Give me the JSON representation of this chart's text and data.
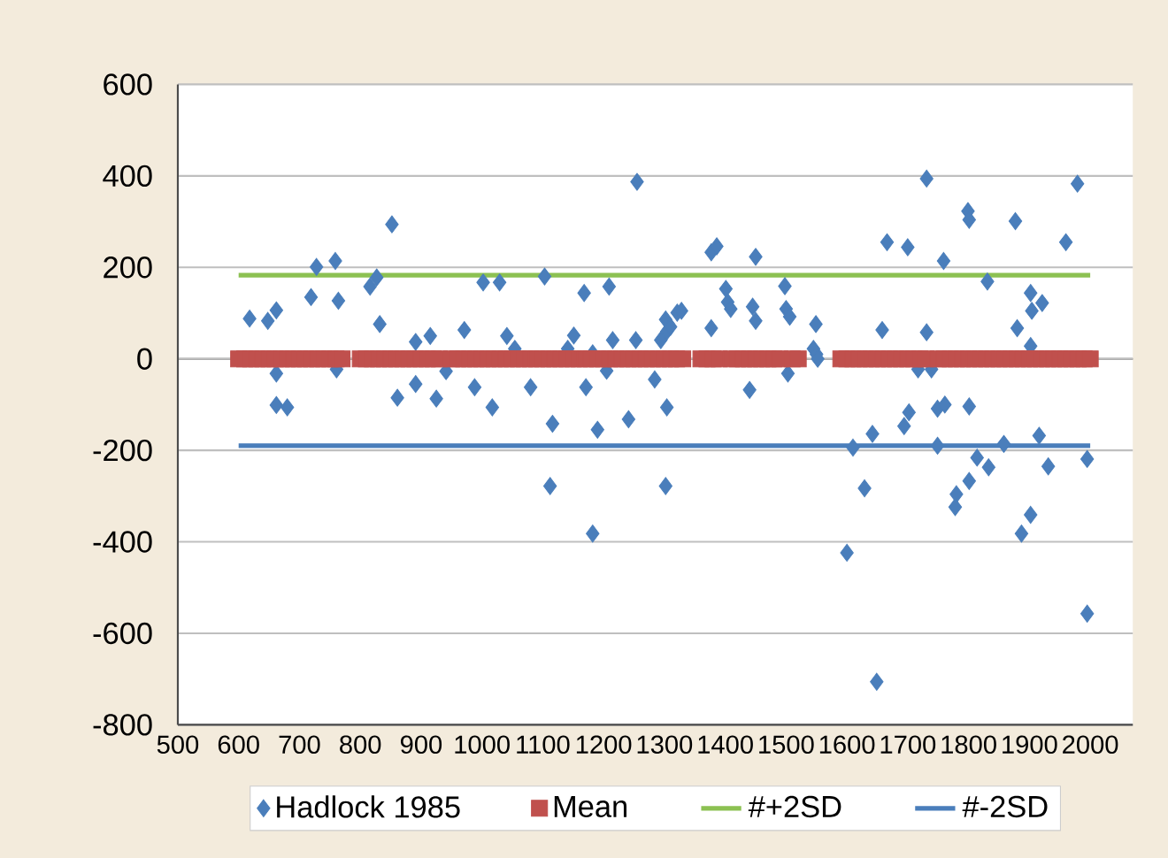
{
  "chart_data": {
    "type": "scatter",
    "xlim": [
      500,
      2070
    ],
    "xticks": [
      500,
      600,
      700,
      800,
      900,
      1000,
      1100,
      1200,
      1300,
      1400,
      1500,
      1600,
      1700,
      1800,
      1900,
      2000
    ],
    "ylim": [
      -800,
      600
    ],
    "yticks": [
      -800,
      -600,
      -400,
      -200,
      0,
      200,
      400,
      600
    ],
    "grid": "y",
    "legend": "bottom",
    "series": [
      {
        "name": "Hadlock 1985",
        "marker": "diamond",
        "color": "#4a7ebb",
        "x": [
          618,
          648,
          662,
          662,
          662,
          680,
          719,
          728,
          759,
          764,
          761,
          816,
          827,
          832,
          852,
          861,
          891,
          891,
          915,
          925,
          941,
          971,
          988,
          1002,
          1017,
          1029,
          1041,
          1054,
          1080,
          1103,
          1116,
          1112,
          1141,
          1151,
          1168,
          1171,
          1182,
          1190,
          1182,
          1205,
          1209,
          1215,
          1241,
          1253,
          1255,
          1284,
          1294,
          1302,
          1304,
          1304,
          1302,
          1310,
          1321,
          1328,
          1377,
          1386,
          1377,
          1401,
          1404,
          1409,
          1450,
          1445,
          1450,
          1440,
          1498,
          1500,
          1506,
          1503,
          1549,
          1545,
          1550,
          1552,
          1610,
          1600,
          1629,
          1642,
          1649,
          1658,
          1666,
          1700,
          1694,
          1702,
          1717,
          1731,
          1731,
          1739,
          1749,
          1749,
          1759,
          1761,
          1780,
          1778,
          1799,
          1801,
          1801,
          1801,
          1814,
          1831,
          1833,
          1858,
          1877,
          1880,
          1902,
          1904,
          1921,
          1902,
          1887,
          1902,
          1916,
          1931,
          1960,
          1979,
          1995,
          1995
        ],
        "values": [
          88,
          83,
          106,
          -32,
          -101,
          -106,
          135,
          201,
          214,
          127,
          -23,
          158,
          178,
          76,
          294,
          -85,
          37,
          -55,
          50,
          -87,
          -27,
          63,
          -62,
          167,
          -106,
          167,
          50,
          22,
          -62,
          180,
          -142,
          -278,
          22,
          51,
          144,
          -62,
          12,
          -155,
          -382,
          -26,
          158,
          41,
          -132,
          41,
          387,
          -45,
          41,
          86,
          60,
          -106,
          -278,
          70,
          101,
          105,
          233,
          246,
          67,
          153,
          124,
          109,
          223,
          114,
          83,
          -68,
          159,
          109,
          92,
          -32,
          76,
          22,
          10,
          0,
          -194,
          -424,
          -283,
          -164,
          -706,
          63,
          255,
          244,
          -147,
          -117,
          -23,
          394,
          58,
          -23,
          -109,
          -190,
          214,
          -100,
          -296,
          -324,
          323,
          304,
          -104,
          -267,
          -216,
          169,
          -237,
          -186,
          301,
          67,
          144,
          105,
          122,
          28,
          -382,
          -341,
          -168,
          -235,
          255,
          383,
          -219,
          -557
        ]
      },
      {
        "name": "Mean",
        "marker": "square",
        "color": "#c0504d",
        "x": [
          600,
          610,
          620,
          630,
          640,
          650,
          660,
          670,
          680,
          690,
          700,
          710,
          720,
          730,
          740,
          750,
          760,
          770,
          800,
          810,
          820,
          830,
          840,
          850,
          860,
          870,
          880,
          890,
          900,
          910,
          920,
          930,
          950,
          960,
          970,
          980,
          990,
          1000,
          1010,
          1020,
          1030,
          1040,
          1050,
          1060,
          1070,
          1080,
          1090,
          1100,
          1110,
          1120,
          1130,
          1140,
          1150,
          1160,
          1170,
          1180,
          1190,
          1200,
          1210,
          1220,
          1230,
          1240,
          1250,
          1260,
          1270,
          1280,
          1290,
          1300,
          1310,
          1320,
          1330,
          1360,
          1370,
          1380,
          1390,
          1410,
          1420,
          1430,
          1440,
          1450,
          1460,
          1470,
          1480,
          1490,
          1510,
          1520,
          1590,
          1600,
          1610,
          1620,
          1630,
          1640,
          1650,
          1660,
          1670,
          1680,
          1690,
          1700,
          1710,
          1720,
          1730,
          1750,
          1760,
          1770,
          1780,
          1790,
          1800,
          1810,
          1820,
          1830,
          1840,
          1850,
          1860,
          1870,
          1880,
          1890,
          1900,
          1910,
          1920,
          1930,
          1940,
          1950,
          1960,
          1970,
          1980,
          1990,
          2000
        ],
        "values": [
          0,
          0,
          0,
          0,
          0,
          0,
          0,
          0,
          0,
          0,
          0,
          0,
          0,
          0,
          0,
          0,
          0,
          0,
          0,
          0,
          0,
          0,
          0,
          0,
          0,
          0,
          0,
          0,
          0,
          0,
          0,
          0,
          0,
          0,
          0,
          0,
          0,
          0,
          0,
          0,
          0,
          0,
          0,
          0,
          0,
          0,
          0,
          0,
          0,
          0,
          0,
          0,
          0,
          0,
          0,
          0,
          0,
          0,
          0,
          0,
          0,
          0,
          0,
          0,
          0,
          0,
          0,
          0,
          0,
          0,
          0,
          0,
          0,
          0,
          0,
          0,
          0,
          0,
          0,
          0,
          0,
          0,
          0,
          0,
          0,
          0,
          0,
          0,
          0,
          0,
          0,
          0,
          0,
          0,
          0,
          0,
          0,
          0,
          0,
          0,
          0,
          0,
          0,
          0,
          0,
          0,
          0,
          0,
          0,
          0,
          0,
          0,
          0,
          0,
          0,
          0,
          0,
          0,
          0,
          0,
          0,
          0,
          0,
          0,
          0,
          0,
          0
        ]
      },
      {
        "name": "#+2SD",
        "type": "line",
        "marker": "none",
        "color": "#8cc152",
        "x": [
          600,
          2000
        ],
        "values": [
          183,
          183
        ]
      },
      {
        "name": "#-2SD",
        "type": "line",
        "marker": "none",
        "color": "#4a7ebb",
        "x": [
          600,
          2000
        ],
        "values": [
          -190,
          -190
        ]
      }
    ]
  }
}
